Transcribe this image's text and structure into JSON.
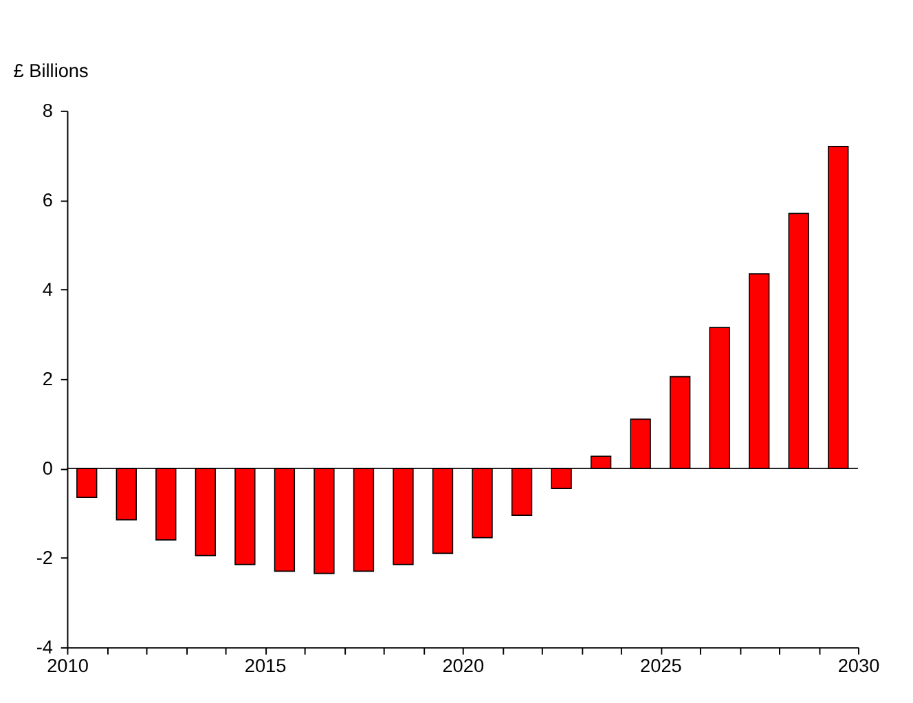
{
  "chart_data": {
    "type": "bar",
    "ylabel": "£ Billions",
    "x": [
      2010.5,
      2011.5,
      2012.5,
      2013.5,
      2014.5,
      2015.5,
      2016.5,
      2017.5,
      2018.5,
      2019.5,
      2020.5,
      2021.5,
      2022.5,
      2023.5,
      2024.5,
      2025.5,
      2026.5,
      2027.5,
      2028.5,
      2029.5
    ],
    "values": [
      -0.65,
      -1.15,
      -1.6,
      -1.95,
      -2.15,
      -2.3,
      -2.35,
      -2.3,
      -2.15,
      -1.9,
      -1.55,
      -1.05,
      -0.45,
      0.27,
      1.1,
      2.05,
      3.15,
      4.35,
      5.7,
      7.2
    ],
    "color": "#ff0000",
    "xlim": [
      2010,
      2030
    ],
    "xticks": [
      2010,
      {
        "value": 2011,
        "label": null
      },
      {
        "value": 2012,
        "label": null
      },
      {
        "value": 2013,
        "label": null
      },
      {
        "value": 2014,
        "label": null
      },
      2015,
      {
        "value": 2016,
        "label": null
      },
      {
        "value": 2017,
        "label": null
      },
      {
        "value": 2018,
        "label": null
      },
      {
        "value": 2019,
        "label": null
      },
      2020,
      {
        "value": 2021,
        "label": null
      },
      {
        "value": 2022,
        "label": null
      },
      {
        "value": 2023,
        "label": null
      },
      {
        "value": 2024,
        "label": null
      },
      2025,
      {
        "value": 2026,
        "label": null
      },
      {
        "value": 2027,
        "label": null
      },
      {
        "value": 2028,
        "label": null
      },
      {
        "value": 2029,
        "label": null
      },
      2030
    ],
    "ylim": [
      -4,
      8
    ],
    "yticks": [
      -4,
      -2,
      0,
      2,
      4,
      6,
      8
    ],
    "ref_lines": [
      {
        "axis": "y",
        "value": 0,
        "color": "#000000"
      }
    ],
    "grid": false
  }
}
